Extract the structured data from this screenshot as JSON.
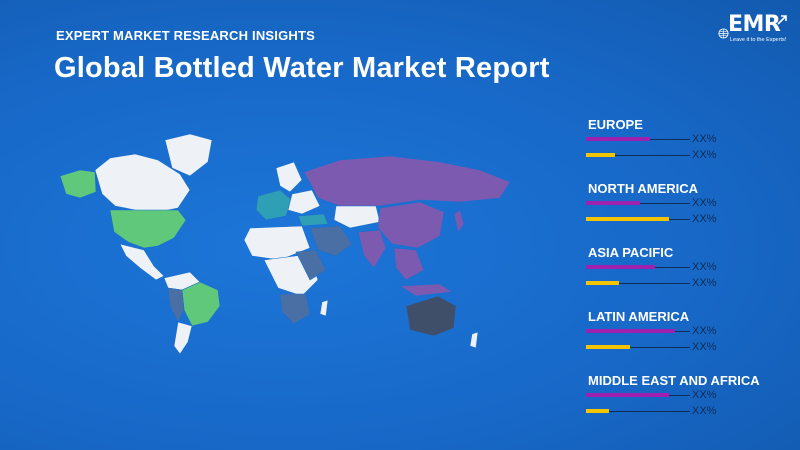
{
  "header": {
    "eyebrow": "EXPERT MARKET RESEARCH INSIGHTS",
    "title": "Global Bottled Water Market Report"
  },
  "logo": {
    "text": "EMR",
    "tagline": "Leave it to the Experts!"
  },
  "colors": {
    "background": "#1a6fd0",
    "purple_bar": "#a020b0",
    "yellow_bar": "#f5c400",
    "map_purple": "#7b5ab0",
    "map_green": "#5fc87a",
    "map_teal": "#2e9fb5",
    "map_slate": "#4a6fa5",
    "map_dark": "#3f4f6a",
    "map_white": "#eef1f6"
  },
  "legend": {
    "regions": [
      {
        "label": "EUROPE",
        "bar1_value": "XX%",
        "bar1_fraction": 0.62,
        "bar2_value": "XX%",
        "bar2_fraction": 0.28
      },
      {
        "label": "NORTH AMERICA",
        "bar1_value": "XX%",
        "bar1_fraction": 0.52,
        "bar2_value": "XX%",
        "bar2_fraction": 0.8
      },
      {
        "label": "ASIA PACIFIC",
        "bar1_value": "XX%",
        "bar1_fraction": 0.66,
        "bar2_value": "XX%",
        "bar2_fraction": 0.32
      },
      {
        "label": "LATIN AMERICA",
        "bar1_value": "XX%",
        "bar1_fraction": 0.86,
        "bar2_value": "XX%",
        "bar2_fraction": 0.42
      },
      {
        "label": "MIDDLE EAST AND AFRICA",
        "bar1_value": "XX%",
        "bar1_fraction": 0.8,
        "bar2_value": "XX%",
        "bar2_fraction": 0.22
      }
    ]
  }
}
